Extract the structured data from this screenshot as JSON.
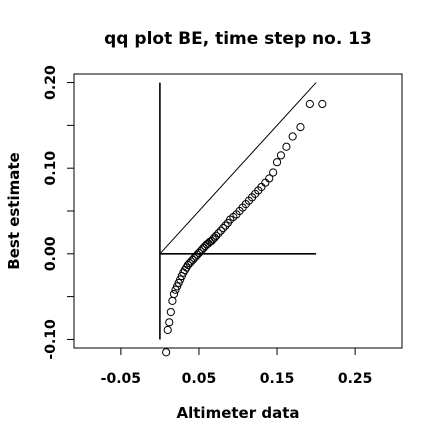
{
  "chart_data": {
    "type": "scatter",
    "title": "qq plot BE, time step no. 13",
    "xlabel": "Altimeter data",
    "ylabel": "Best estimate",
    "xlim": [
      -0.11,
      0.31
    ],
    "ylim": [
      -0.11,
      0.21
    ],
    "x_ticks": [
      -0.05,
      0.05,
      0.15,
      0.25
    ],
    "x_tick_labels": [
      "-0.05",
      "0.05",
      "0.15",
      "0.25"
    ],
    "y_ticks": [
      -0.1,
      0.0,
      0.1,
      0.2
    ],
    "y_tick_labels": [
      "-0.10",
      "0.00",
      "0.10",
      "0.20"
    ],
    "grid": false,
    "legend": "none",
    "reference_lines": [
      {
        "name": "identity",
        "x": [
          0.0,
          0.2
        ],
        "y": [
          0.0,
          0.2
        ]
      },
      {
        "name": "horizontal",
        "x": [
          0.0,
          0.2
        ],
        "y": [
          0.0,
          0.0
        ]
      },
      {
        "name": "vertical",
        "x": [
          0.0,
          0.0
        ],
        "y": [
          -0.1,
          0.2
        ]
      }
    ],
    "series": [
      {
        "marker": "open-circle",
        "x": [
          0.008,
          0.01,
          0.012,
          0.014,
          0.016,
          0.018,
          0.02,
          0.022,
          0.024,
          0.026,
          0.028,
          0.03,
          0.032,
          0.034,
          0.036,
          0.038,
          0.04,
          0.042,
          0.044,
          0.046,
          0.048,
          0.05,
          0.052,
          0.054,
          0.056,
          0.058,
          0.06,
          0.062,
          0.064,
          0.066,
          0.068,
          0.07,
          0.072,
          0.075,
          0.078,
          0.081,
          0.084,
          0.087,
          0.09,
          0.094,
          0.098,
          0.102,
          0.106,
          0.11,
          0.114,
          0.118,
          0.122,
          0.126,
          0.13,
          0.135,
          0.14,
          0.145,
          0.15,
          0.155,
          0.162,
          0.17,
          0.18,
          0.192,
          0.208
        ],
        "y": [
          -0.115,
          -0.089,
          -0.08,
          -0.068,
          -0.055,
          -0.047,
          -0.042,
          -0.038,
          -0.034,
          -0.03,
          -0.026,
          -0.022,
          -0.019,
          -0.016,
          -0.013,
          -0.011,
          -0.009,
          -0.007,
          -0.005,
          -0.003,
          -0.001,
          0.001,
          0.003,
          0.005,
          0.007,
          0.009,
          0.011,
          0.012,
          0.014,
          0.015,
          0.017,
          0.019,
          0.021,
          0.024,
          0.027,
          0.03,
          0.033,
          0.036,
          0.04,
          0.043,
          0.046,
          0.05,
          0.054,
          0.058,
          0.062,
          0.066,
          0.07,
          0.074,
          0.078,
          0.083,
          0.088,
          0.095,
          0.107,
          0.115,
          0.125,
          0.137,
          0.148,
          0.175,
          0.175
        ]
      }
    ]
  }
}
